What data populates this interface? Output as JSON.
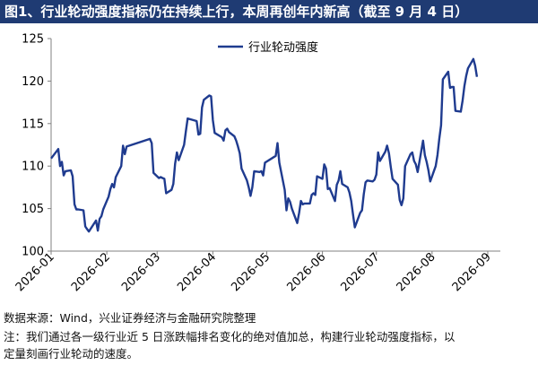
{
  "header": {
    "title": "图1、行业轮动强度指标仍在持续上行，本周再创年内新高（截至 9 月 4 日）"
  },
  "footer": {
    "source": "数据来源：Wind，兴业证券经济与金融研究院整理",
    "note_line1": "注：我们通过各一级行业近 5 日涨跌幅排名变化的绝对值加总，构建行业轮动强度指标，以",
    "note_line2": "定量刻画行业轮动的速度。"
  },
  "colors": {
    "title_bg": "#1f3b73",
    "series": "#1f3b8f",
    "axis": "#808080"
  },
  "chart_data": {
    "type": "line",
    "title": "",
    "xlabel": "",
    "ylabel": "",
    "ylim": [
      100,
      125
    ],
    "yticks": [
      100,
      105,
      110,
      115,
      120,
      125
    ],
    "xlim": [
      "2026-01-01",
      "2026-09-08"
    ],
    "xticks": [
      "2026-01",
      "2026-02",
      "2026-03",
      "2026-04",
      "2026-05",
      "2026-06",
      "2026-07",
      "2026-08",
      "2026-09"
    ],
    "grid": false,
    "legend": "top-center",
    "series": [
      {
        "name": "行业轮动强度",
        "color": "#1f3b8f",
        "points": [
          [
            "2026-01-01",
            110.9
          ],
          [
            "2026-01-05",
            112.0
          ],
          [
            "2026-01-06",
            110.0
          ],
          [
            "2026-01-07",
            110.5
          ],
          [
            "2026-01-08",
            108.9
          ],
          [
            "2026-01-09",
            109.4
          ],
          [
            "2026-01-12",
            109.5
          ],
          [
            "2026-01-13",
            108.8
          ],
          [
            "2026-01-14",
            105.5
          ],
          [
            "2026-01-15",
            104.9
          ],
          [
            "2026-01-16",
            104.9
          ],
          [
            "2026-01-19",
            104.8
          ],
          [
            "2026-01-20",
            102.9
          ],
          [
            "2026-01-21",
            102.6
          ],
          [
            "2026-01-22",
            102.3
          ],
          [
            "2026-01-26",
            103.6
          ],
          [
            "2026-01-27",
            102.4
          ],
          [
            "2026-01-28",
            103.8
          ],
          [
            "2026-01-29",
            104.1
          ],
          [
            "2026-01-30",
            104.9
          ],
          [
            "2026-02-02",
            106.4
          ],
          [
            "2026-02-03",
            107.3
          ],
          [
            "2026-02-04",
            107.9
          ],
          [
            "2026-02-05",
            107.5
          ],
          [
            "2026-02-06",
            108.7
          ],
          [
            "2026-02-09",
            110.0
          ],
          [
            "2026-02-10",
            112.4
          ],
          [
            "2026-02-11",
            111.4
          ],
          [
            "2026-02-12",
            112.3
          ],
          [
            "2026-02-25",
            113.2
          ],
          [
            "2026-02-26",
            112.7
          ],
          [
            "2026-02-27",
            109.2
          ],
          [
            "2026-03-02",
            108.6
          ],
          [
            "2026-03-03",
            108.7
          ],
          [
            "2026-03-04",
            108.6
          ],
          [
            "2026-03-05",
            108.5
          ],
          [
            "2026-03-06",
            106.8
          ],
          [
            "2026-03-09",
            107.2
          ],
          [
            "2026-03-10",
            107.9
          ],
          [
            "2026-03-11",
            110.3
          ],
          [
            "2026-03-12",
            111.6
          ],
          [
            "2026-03-13",
            110.7
          ],
          [
            "2026-03-16",
            112.5
          ],
          [
            "2026-03-17",
            114.1
          ],
          [
            "2026-03-18",
            115.6
          ],
          [
            "2026-03-23",
            115.3
          ],
          [
            "2026-03-24",
            113.7
          ],
          [
            "2026-03-25",
            113.8
          ],
          [
            "2026-03-26",
            116.9
          ],
          [
            "2026-03-27",
            117.8
          ],
          [
            "2026-03-30",
            118.3
          ],
          [
            "2026-03-31",
            118.2
          ],
          [
            "2026-04-01",
            115.4
          ],
          [
            "2026-04-02",
            113.9
          ],
          [
            "2026-04-06",
            113.4
          ],
          [
            "2026-04-07",
            113.0
          ],
          [
            "2026-04-08",
            114.2
          ],
          [
            "2026-04-09",
            114.4
          ],
          [
            "2026-04-10",
            114.0
          ],
          [
            "2026-04-13",
            113.5
          ],
          [
            "2026-04-14",
            113.0
          ],
          [
            "2026-04-15",
            112.3
          ],
          [
            "2026-04-16",
            111.5
          ],
          [
            "2026-04-17",
            109.7
          ],
          [
            "2026-04-20",
            108.3
          ],
          [
            "2026-04-21",
            107.5
          ],
          [
            "2026-04-22",
            106.5
          ],
          [
            "2026-04-23",
            107.5
          ],
          [
            "2026-04-24",
            109.4
          ],
          [
            "2026-04-27",
            109.3
          ],
          [
            "2026-04-28",
            109.4
          ],
          [
            "2026-04-29",
            108.9
          ],
          [
            "2026-04-30",
            110.4
          ],
          [
            "2026-05-06",
            111.2
          ],
          [
            "2026-05-07",
            112.7
          ],
          [
            "2026-05-08",
            110.4
          ],
          [
            "2026-05-11",
            107.2
          ],
          [
            "2026-05-12",
            104.8
          ],
          [
            "2026-05-13",
            106.2
          ],
          [
            "2026-05-14",
            105.8
          ],
          [
            "2026-05-15",
            105.0
          ],
          [
            "2026-05-18",
            103.3
          ],
          [
            "2026-05-19",
            104.5
          ],
          [
            "2026-05-20",
            105.9
          ],
          [
            "2026-05-21",
            105.5
          ],
          [
            "2026-05-22",
            105.6
          ],
          [
            "2026-05-25",
            105.6
          ],
          [
            "2026-05-26",
            106.6
          ],
          [
            "2026-05-27",
            106.8
          ],
          [
            "2026-05-28",
            106.6
          ],
          [
            "2026-05-29",
            108.8
          ],
          [
            "2026-06-01",
            108.5
          ],
          [
            "2026-06-02",
            110.2
          ],
          [
            "2026-06-03",
            109.7
          ],
          [
            "2026-06-04",
            107.3
          ],
          [
            "2026-06-05",
            107.4
          ],
          [
            "2026-06-08",
            105.9
          ],
          [
            "2026-06-09",
            107.8
          ],
          [
            "2026-06-10",
            108.3
          ],
          [
            "2026-06-11",
            109.4
          ],
          [
            "2026-06-12",
            107.9
          ],
          [
            "2026-06-15",
            107.5
          ],
          [
            "2026-06-16",
            106.9
          ],
          [
            "2026-06-17",
            105.9
          ],
          [
            "2026-06-18",
            104.3
          ],
          [
            "2026-06-19",
            102.8
          ],
          [
            "2026-06-22",
            104.5
          ],
          [
            "2026-06-23",
            104.8
          ],
          [
            "2026-06-24",
            106.7
          ],
          [
            "2026-06-25",
            108.1
          ],
          [
            "2026-06-26",
            108.3
          ],
          [
            "2026-06-29",
            108.2
          ],
          [
            "2026-06-30",
            108.4
          ],
          [
            "2026-07-01",
            109.0
          ],
          [
            "2026-07-02",
            111.6
          ],
          [
            "2026-07-03",
            110.6
          ],
          [
            "2026-07-06",
            111.7
          ],
          [
            "2026-07-07",
            112.4
          ],
          [
            "2026-07-08",
            111.5
          ],
          [
            "2026-07-09",
            109.9
          ],
          [
            "2026-07-10",
            108.5
          ],
          [
            "2026-07-13",
            107.8
          ],
          [
            "2026-07-14",
            106.0
          ],
          [
            "2026-07-15",
            105.4
          ],
          [
            "2026-07-16",
            106.2
          ],
          [
            "2026-07-17",
            110.0
          ],
          [
            "2026-07-20",
            111.4
          ],
          [
            "2026-07-21",
            111.6
          ],
          [
            "2026-07-22",
            110.6
          ],
          [
            "2026-07-23",
            110.2
          ],
          [
            "2026-07-24",
            109.3
          ],
          [
            "2026-07-27",
            113.0
          ],
          [
            "2026-07-28",
            111.3
          ],
          [
            "2026-07-29",
            110.5
          ],
          [
            "2026-07-30",
            109.5
          ],
          [
            "2026-07-31",
            108.2
          ],
          [
            "2026-08-03",
            110.0
          ],
          [
            "2026-08-04",
            111.3
          ],
          [
            "2026-08-05",
            113.2
          ],
          [
            "2026-08-06",
            114.8
          ],
          [
            "2026-08-07",
            120.2
          ],
          [
            "2026-08-10",
            121.1
          ],
          [
            "2026-08-11",
            119.2
          ],
          [
            "2026-08-12",
            119.3
          ],
          [
            "2026-08-13",
            119.3
          ],
          [
            "2026-08-14",
            116.5
          ],
          [
            "2026-08-17",
            116.4
          ],
          [
            "2026-08-18",
            117.7
          ],
          [
            "2026-08-19",
            119.4
          ],
          [
            "2026-08-20",
            120.6
          ],
          [
            "2026-08-21",
            121.5
          ],
          [
            "2026-08-24",
            122.6
          ],
          [
            "2026-08-25",
            121.8
          ],
          [
            "2026-08-26",
            120.5
          ]
        ]
      }
    ]
  }
}
